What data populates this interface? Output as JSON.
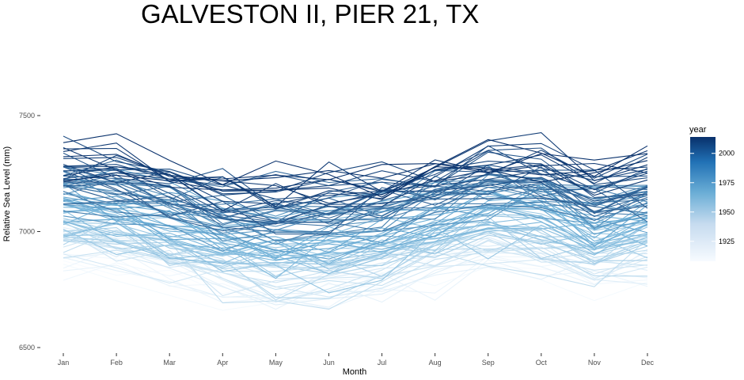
{
  "chart_data": {
    "type": "line",
    "title": "GALVESTON II, PIER 21, TX",
    "xlabel": "Month",
    "ylabel": "Relative Sea Level (mm)",
    "categories": [
      "Jan",
      "Feb",
      "Mar",
      "Apr",
      "May",
      "Jun",
      "Jul",
      "Aug",
      "Sep",
      "Oct",
      "Nov",
      "Dec"
    ],
    "yticks": [
      6500,
      7000,
      7500
    ],
    "ylim": [
      6490,
      7800
    ],
    "grid": false,
    "legend": {
      "title": "year",
      "position": "right",
      "ticks": [
        1925,
        1950,
        1975,
        2000
      ],
      "range": [
        1908,
        2014
      ]
    },
    "color_scale": {
      "low": "#f7fbff",
      "mid": "#6baed6",
      "high": "#08306b"
    },
    "year_range": [
      1909,
      2014
    ],
    "series_note": "one line per year",
    "series_sample": [
      {
        "year": 1909,
        "values": [
          6880,
          6850,
          6740,
          6700,
          6650,
          6660,
          6700,
          6780,
          6840,
          6820,
          6760,
          6770
        ]
      },
      {
        "year": 1930,
        "values": [
          6920,
          6880,
          6800,
          6760,
          6700,
          6720,
          6760,
          6820,
          6880,
          6860,
          6800,
          6810
        ]
      },
      {
        "year": 1950,
        "values": [
          7020,
          6980,
          6900,
          6860,
          6800,
          6820,
          6860,
          6920,
          6980,
          6960,
          6900,
          6910
        ]
      },
      {
        "year": 1975,
        "values": [
          7160,
          7120,
          7040,
          7000,
          6940,
          6960,
          7000,
          7060,
          7120,
          7100,
          7040,
          7050
        ]
      },
      {
        "year": 2000,
        "values": [
          7380,
          7360,
          7260,
          7180,
          7140,
          7160,
          7220,
          7300,
          7380,
          7340,
          7240,
          7300
        ]
      },
      {
        "year": 2014,
        "values": [
          7480,
          7460,
          7380,
          7280,
          7260,
          7280,
          7340,
          7420,
          7460,
          7440,
          7360,
          7420
        ]
      }
    ]
  }
}
